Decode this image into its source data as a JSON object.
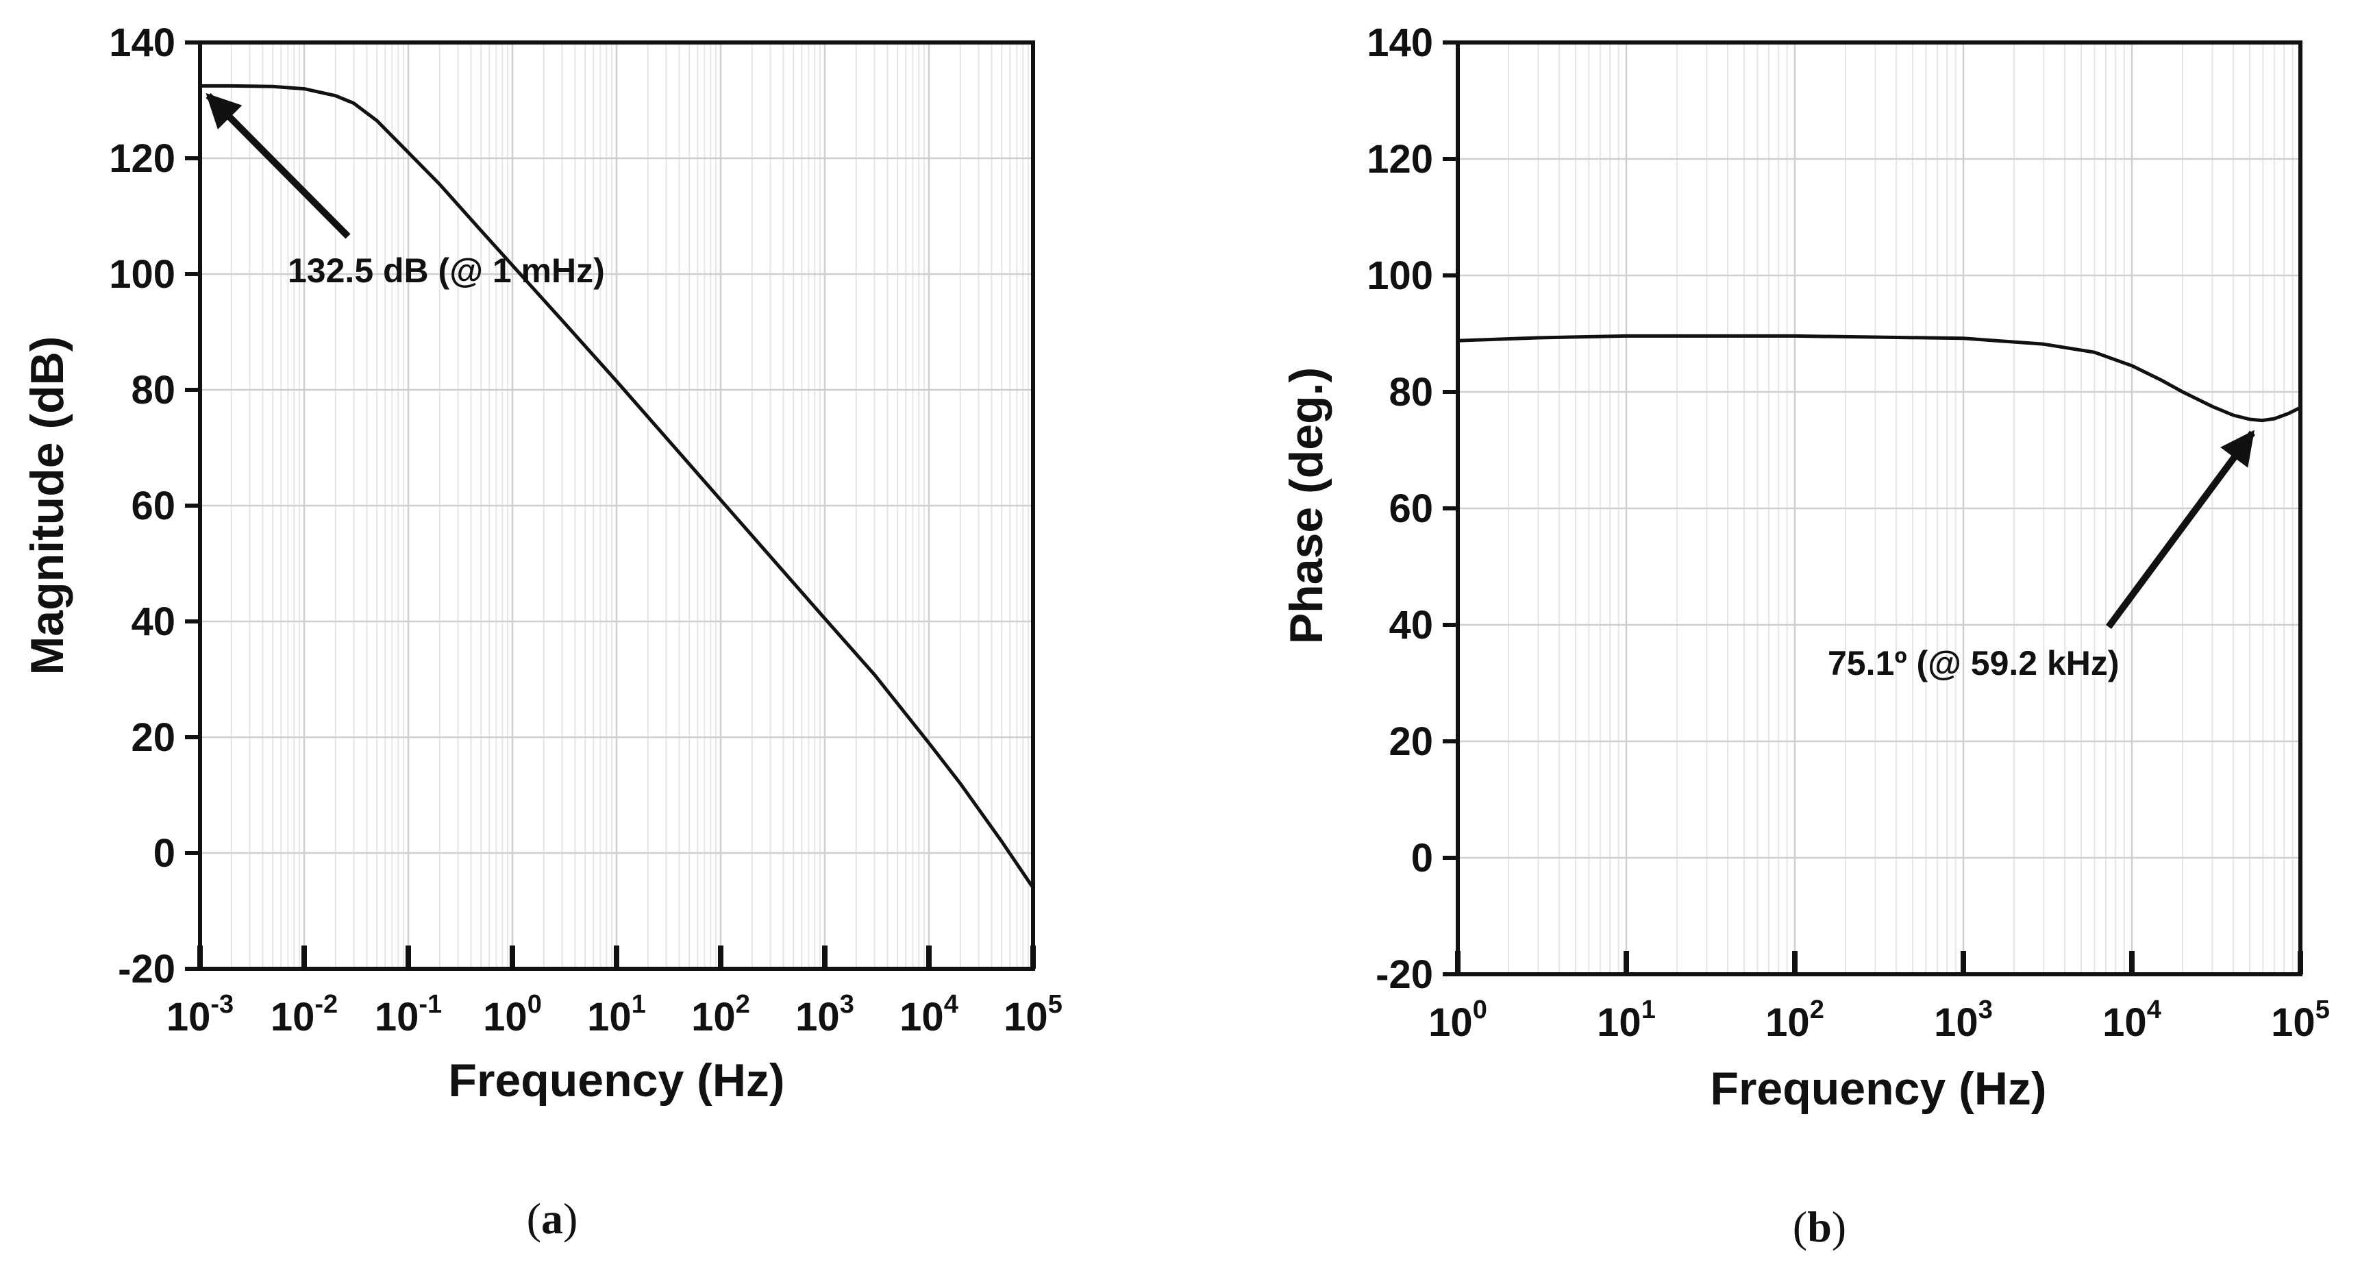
{
  "colors": {
    "curve": "#111111",
    "frame": "#111111",
    "grid_major": "#cfcfcf",
    "grid_minor": "#e6e6e6"
  },
  "chart_data": [
    {
      "type": "line",
      "panel_label": "a",
      "xlabel": "Frequency (Hz)",
      "ylabel": "Magnitude (dB)",
      "xscale": "log",
      "xlim": [
        0.001,
        100000
      ],
      "ylim": [
        -20,
        140
      ],
      "x_ticks": [
        {
          "base": "10",
          "exp": "-3"
        },
        {
          "base": "10",
          "exp": "-2"
        },
        {
          "base": "10",
          "exp": "-1"
        },
        {
          "base": "10",
          "exp": "0"
        },
        {
          "base": "10",
          "exp": "1"
        },
        {
          "base": "10",
          "exp": "2"
        },
        {
          "base": "10",
          "exp": "3"
        },
        {
          "base": "10",
          "exp": "4"
        },
        {
          "base": "10",
          "exp": "5"
        }
      ],
      "y_ticks": [
        "-20",
        "0",
        "20",
        "40",
        "60",
        "80",
        "100",
        "120",
        "140"
      ],
      "grid": true,
      "series": [
        {
          "x": [
            0.001,
            0.002,
            0.005,
            0.01,
            0.02,
            0.03,
            0.05,
            0.1,
            0.2,
            0.5,
            1,
            3,
            10,
            100,
            1000,
            3000,
            10000,
            20000,
            50000,
            100000
          ],
          "y": [
            132.5,
            132.5,
            132.4,
            132.0,
            130.8,
            129.5,
            126.5,
            121.0,
            115.5,
            107.5,
            101.5,
            92.0,
            81.5,
            61.0,
            40.5,
            30.8,
            19.0,
            12.0,
            2.0,
            -6.0
          ]
        }
      ],
      "annotation": {
        "text": "132.5 dB (@ 1 mHz)",
        "point": {
          "x": 0.001,
          "y": 132.5
        }
      }
    },
    {
      "type": "line",
      "panel_label": "b",
      "xlabel": "Frequency (Hz)",
      "ylabel": "Phase (deg.)",
      "xscale": "log",
      "xlim": [
        1,
        100000
      ],
      "ylim": [
        -20,
        140
      ],
      "x_ticks": [
        {
          "base": "10",
          "exp": "0"
        },
        {
          "base": "10",
          "exp": "1"
        },
        {
          "base": "10",
          "exp": "2"
        },
        {
          "base": "10",
          "exp": "3"
        },
        {
          "base": "10",
          "exp": "4"
        },
        {
          "base": "10",
          "exp": "5"
        }
      ],
      "y_ticks": [
        "-20",
        "0",
        "20",
        "40",
        "60",
        "80",
        "100",
        "120",
        "140"
      ],
      "grid": true,
      "series": [
        {
          "x": [
            1,
            3,
            10,
            100,
            1000,
            3000,
            6000,
            10000,
            15000,
            20000,
            30000,
            40000,
            50000,
            59200,
            70000,
            85000,
            100000
          ],
          "y": [
            88.8,
            89.3,
            89.6,
            89.6,
            89.2,
            88.2,
            86.8,
            84.5,
            82.0,
            80.0,
            77.5,
            76.0,
            75.3,
            75.1,
            75.4,
            76.3,
            77.3
          ]
        }
      ],
      "annotation": {
        "text": "75.1º (@ 59.2 kHz)",
        "point": {
          "x": 59200,
          "y": 75.1
        }
      }
    }
  ]
}
